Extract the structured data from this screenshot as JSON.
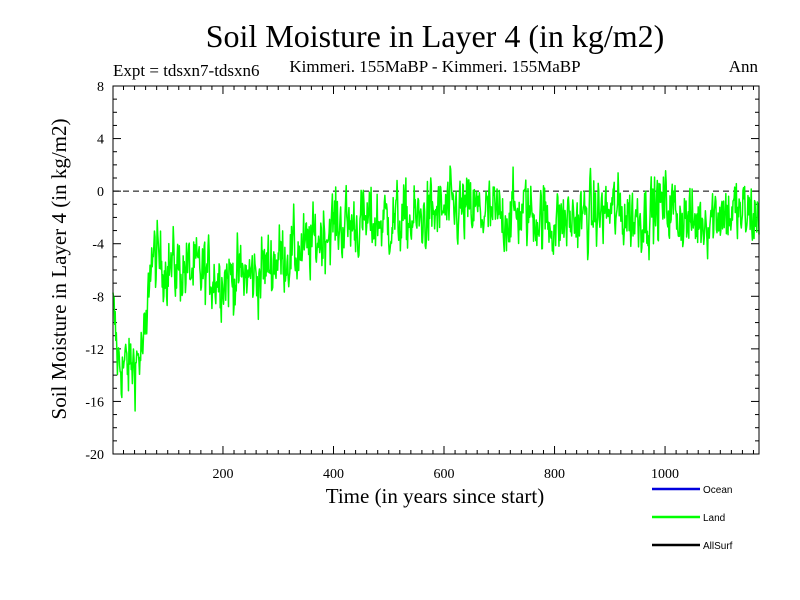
{
  "chart_data": {
    "type": "line",
    "title": "Soil Moisture in Layer 4 (in kg/m2)",
    "subtitle_left": "Expt = tdsxn7-tdsxn6",
    "subtitle_center": "Kimmeri. 155MaBP - Kimmeri. 155MaBP",
    "subtitle_right": "Ann",
    "xlabel": "Time (in years since start)",
    "ylabel": "Soil Moisture in Layer 4 (in kg/m2)",
    "xlim": [
      1,
      1170
    ],
    "ylim": [
      -20,
      8
    ],
    "xticks": [
      200,
      400,
      600,
      800,
      1000
    ],
    "xtick_labels": [
      "200",
      "400",
      "600",
      "800",
      "1000"
    ],
    "yticks": [
      -20,
      -16,
      -12,
      -8,
      -4,
      0,
      4,
      8
    ],
    "ytick_labels": [
      "-20",
      "-16",
      "-12",
      "-8",
      "-4",
      "0",
      "4",
      "8"
    ],
    "reference_line": 0,
    "trend_knots": {
      "x": [
        1,
        10,
        30,
        50,
        62,
        68,
        90,
        130,
        200,
        260,
        300,
        350,
        400,
        450,
        500,
        550,
        600,
        650,
        700,
        750,
        800,
        850,
        900,
        950,
        1000,
        1050,
        1100,
        1170
      ],
      "y": [
        -9,
        -13,
        -13.5,
        -12.5,
        -11,
        -5,
        -5.5,
        -6,
        -6.5,
        -6.5,
        -5,
        -4.5,
        -2.5,
        -2.5,
        -2.2,
        -2.3,
        -1.5,
        -1.5,
        -2,
        -1.5,
        -2.5,
        -2,
        -1.5,
        -2,
        -1,
        -2.5,
        -1.5,
        -2
      ]
    },
    "noise_amplitude": 1.6,
    "legend_position": "bottom-right",
    "series": [
      {
        "name": "Ocean",
        "color": "#0000dd",
        "has_data": false
      },
      {
        "name": "Land",
        "color": "#00ff00",
        "has_data": true
      },
      {
        "name": "AllSurf",
        "color": "#000000",
        "has_data": false
      }
    ]
  }
}
